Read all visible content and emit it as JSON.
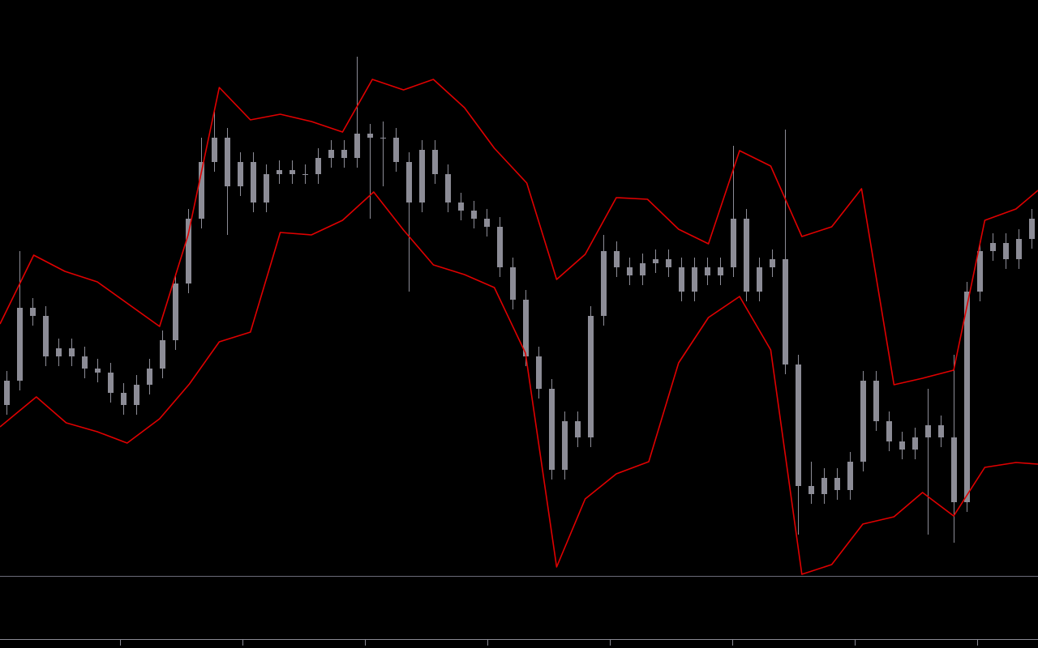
{
  "chart_data": {
    "type": "candlestick",
    "color": "#8c8c96",
    "xlim": [
      0,
      80
    ],
    "ylim": [
      0,
      710
    ],
    "open": [
      210,
      240,
      330,
      320,
      270,
      280,
      270,
      255,
      250,
      225,
      210,
      235,
      255,
      290,
      360,
      440,
      510,
      540,
      480,
      510,
      460,
      495,
      500,
      495,
      495,
      515,
      525,
      515,
      545,
      540,
      540,
      510,
      460,
      525,
      495,
      460,
      450,
      440,
      430,
      380,
      340,
      270,
      230,
      130,
      190,
      170,
      320,
      400,
      380,
      370,
      385,
      390,
      380,
      350,
      380,
      370,
      380,
      440,
      350,
      380,
      390,
      260,
      110,
      100,
      120,
      105,
      140,
      240,
      190,
      165,
      155,
      170,
      185,
      170,
      90,
      350,
      400,
      410,
      390,
      415
    ],
    "high": [
      252,
      400,
      342,
      332,
      292,
      292,
      282,
      267,
      262,
      237,
      247,
      267,
      302,
      372,
      452,
      540,
      572,
      552,
      522,
      522,
      507,
      512,
      512,
      507,
      527,
      537,
      537,
      640,
      557,
      560,
      552,
      522,
      537,
      537,
      507,
      472,
      462,
      452,
      442,
      392,
      352,
      282,
      242,
      202,
      202,
      332,
      420,
      412,
      392,
      397,
      402,
      402,
      392,
      392,
      392,
      392,
      530,
      452,
      392,
      402,
      550,
      272,
      140,
      132,
      132,
      152,
      252,
      252,
      202,
      177,
      182,
      230,
      197,
      272,
      362,
      412,
      422,
      422,
      427,
      452
    ],
    "low": [
      198,
      228,
      308,
      258,
      258,
      258,
      243,
      238,
      213,
      198,
      198,
      223,
      243,
      278,
      348,
      428,
      498,
      420,
      468,
      448,
      448,
      483,
      483,
      483,
      483,
      503,
      503,
      503,
      440,
      480,
      498,
      350,
      448,
      483,
      448,
      438,
      428,
      418,
      368,
      328,
      258,
      218,
      118,
      118,
      158,
      158,
      308,
      368,
      358,
      358,
      373,
      368,
      338,
      338,
      358,
      358,
      368,
      338,
      338,
      368,
      248,
      50,
      88,
      88,
      93,
      93,
      128,
      178,
      153,
      143,
      143,
      50,
      158,
      40,
      78,
      338,
      388,
      378,
      378,
      403
    ],
    "close": [
      240,
      330,
      320,
      270,
      280,
      270,
      255,
      250,
      225,
      210,
      235,
      255,
      290,
      360,
      440,
      510,
      540,
      480,
      510,
      460,
      495,
      500,
      495,
      495,
      515,
      525,
      515,
      545,
      540,
      540,
      510,
      460,
      525,
      495,
      460,
      450,
      440,
      430,
      380,
      340,
      270,
      230,
      130,
      190,
      170,
      320,
      400,
      380,
      370,
      385,
      390,
      380,
      350,
      380,
      370,
      380,
      440,
      350,
      380,
      390,
      260,
      110,
      100,
      120,
      105,
      140,
      240,
      190,
      165,
      155,
      170,
      185,
      170,
      90,
      350,
      400,
      410,
      390,
      415,
      440
    ],
    "lines": [
      {
        "color": "#e00000",
        "x": [
          0,
          2.6,
          5,
          7.5,
          12.3,
          14.5,
          16.9,
          19.3,
          21.6,
          24,
          26.4,
          28.7,
          31.1,
          33.4,
          35.8,
          38.1,
          40.6,
          42.9,
          45.1,
          47.5,
          49.9,
          52.3,
          54.6,
          57,
          59.4,
          61.8,
          64.1,
          66.4,
          68.9,
          71.1,
          73.5,
          75.9,
          78.3,
          80
        ],
        "values": [
          310,
          395,
          375,
          362,
          307,
          420,
          602,
          562,
          569,
          560,
          547,
          612,
          599,
          612,
          577,
          527,
          484,
          365,
          396,
          466,
          464,
          427,
          409,
          524,
          505,
          418,
          430,
          477,
          235,
          243,
          253,
          438,
          452,
          475
        ]
      },
      {
        "color": "#e00000",
        "x": [
          0,
          2.8,
          5.1,
          7.5,
          9.8,
          12.3,
          14.6,
          16.9,
          19.3,
          21.6,
          24,
          26.4,
          28.8,
          31.1,
          33.4,
          35.8,
          38.1,
          40.5,
          42.9,
          45.1,
          47.5,
          50,
          52.3,
          54.6,
          57,
          59.4,
          61.8,
          64.1,
          66.5,
          68.9,
          71.1,
          73.5,
          75.9,
          78.3,
          80
        ],
        "values": [
          183,
          220,
          188,
          177,
          163,
          193,
          236,
          288,
          300,
          423,
          420,
          438,
          473,
          426,
          383,
          371,
          355,
          274,
          10,
          94,
          125,
          140,
          262,
          318,
          344,
          278,
          1,
          13,
          63,
          72,
          102,
          73,
          133,
          139,
          137
        ]
      }
    ]
  }
}
